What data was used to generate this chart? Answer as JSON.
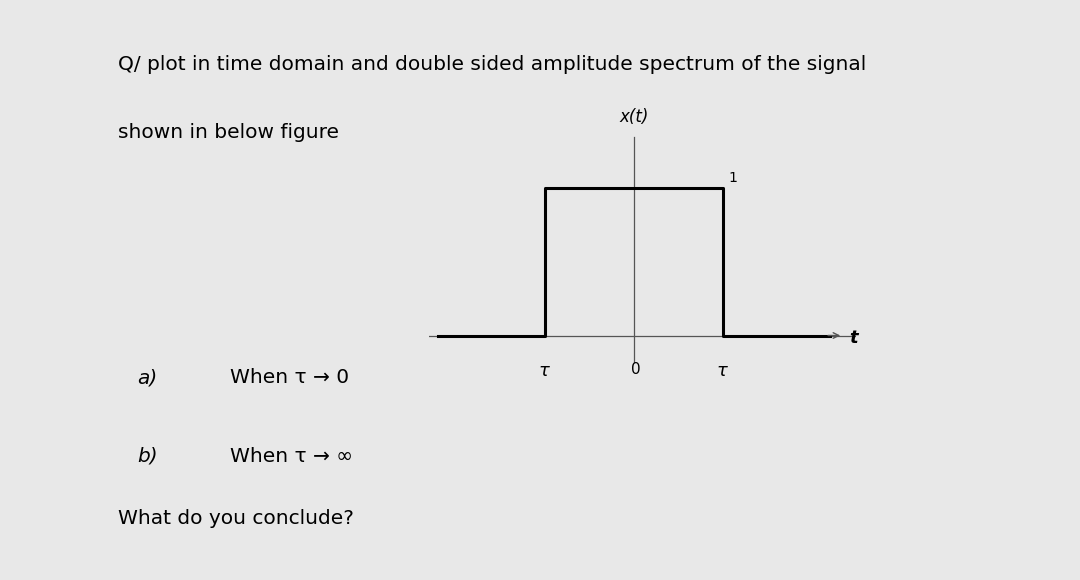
{
  "background_color": "#e8e8e8",
  "card_color": "#ffffff",
  "title_line1": "Q/ plot in time domain and double sided amplitude spectrum of the signal",
  "title_line2": "shown in below figure",
  "title_fontsize": 14.5,
  "question_a": "a)",
  "question_a_text": "When τ → 0",
  "question_b": "b)",
  "question_b_text": "When τ → ∞",
  "conclusion": "What do you conclude?",
  "text_fontsize": 14.5,
  "signal_label": "x(t)",
  "t_label": "t",
  "tau_neg_label": "τ",
  "tau_pos_label": "τ",
  "zero_label": "0",
  "one_label": "1"
}
